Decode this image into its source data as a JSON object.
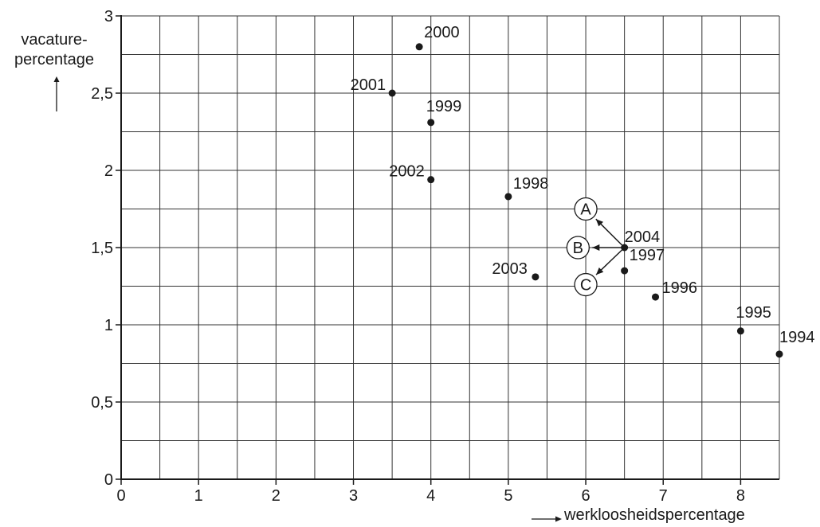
{
  "chart_data": {
    "type": "scatter",
    "xlabel": "werkloosheidspercentage",
    "ylabel_line1": "vacature-",
    "ylabel_line2": "percentage",
    "xlim": [
      0,
      8.5
    ],
    "ylim": [
      0,
      3
    ],
    "grid": true,
    "x_ticks": [
      "0",
      "1",
      "2",
      "3",
      "4",
      "5",
      "6",
      "7",
      "8"
    ],
    "y_ticks": [
      "0",
      "0,5",
      "1",
      "1,5",
      "2",
      "2,5",
      "3"
    ],
    "points": [
      {
        "label": "1994",
        "x": 8.5,
        "y": 0.81
      },
      {
        "label": "1995",
        "x": 8.0,
        "y": 0.96
      },
      {
        "label": "1996",
        "x": 6.9,
        "y": 1.18
      },
      {
        "label": "1997",
        "x": 6.5,
        "y": 1.35
      },
      {
        "label": "1998",
        "x": 5.0,
        "y": 1.83
      },
      {
        "label": "1999",
        "x": 4.0,
        "y": 2.31
      },
      {
        "label": "2000",
        "x": 3.85,
        "y": 2.8
      },
      {
        "label": "2001",
        "x": 3.5,
        "y": 2.5
      },
      {
        "label": "2002",
        "x": 4.0,
        "y": 1.94
      },
      {
        "label": "2003",
        "x": 5.35,
        "y": 1.31
      },
      {
        "label": "2004",
        "x": 6.5,
        "y": 1.5
      }
    ],
    "annotations": [
      {
        "label": "A",
        "x": 6.0,
        "y": 1.75
      },
      {
        "label": "B",
        "x": 5.9,
        "y": 1.5
      },
      {
        "label": "C",
        "x": 6.0,
        "y": 1.26
      }
    ]
  }
}
